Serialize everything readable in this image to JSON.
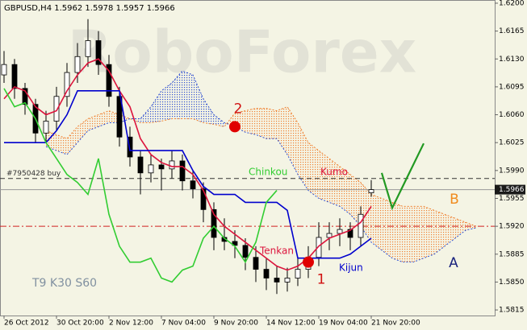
{
  "chart_data": {
    "type": "candlestick",
    "title": "GBPUSD,H4  1.5962 1.5978 1.5957 1.5966",
    "watermark": "RoboForex",
    "settings_text": "T9 K30 S60",
    "categories": [
      "26 Oct 2012",
      null,
      null,
      null,
      null,
      "30 Oct 20:00",
      null,
      null,
      null,
      null,
      "2 Nov 12:00",
      null,
      null,
      null,
      null,
      "7 Nov 04:00",
      null,
      null,
      null,
      null,
      "9 Nov 20:00",
      null,
      null,
      null,
      null,
      "14 Nov 12:00",
      null,
      null,
      null,
      null,
      "19 Nov 04:00",
      null,
      null,
      null,
      null,
      "21 Nov 20:00",
      null,
      null,
      null,
      null,
      null,
      null,
      null,
      null,
      null,
      null
    ],
    "candles": [
      [
        1.611,
        1.614,
        1.61,
        1.6123
      ],
      [
        1.6123,
        1.613,
        1.608,
        1.6093
      ],
      [
        1.6093,
        1.61,
        1.606,
        1.6073
      ],
      [
        1.6073,
        1.608,
        1.6025,
        1.6037
      ],
      [
        1.6037,
        1.6065,
        1.6025,
        1.6052
      ],
      [
        1.6052,
        1.6095,
        1.604,
        1.6083
      ],
      [
        1.6083,
        1.6125,
        1.607,
        1.6113
      ],
      [
        1.6113,
        1.615,
        1.61,
        1.6133
      ],
      [
        1.6133,
        1.618,
        1.612,
        1.6153
      ],
      [
        1.6153,
        1.6165,
        1.611,
        1.6123
      ],
      [
        1.6123,
        1.6135,
        1.607,
        1.6083
      ],
      [
        1.6083,
        1.6095,
        1.602,
        1.6032
      ],
      [
        1.6032,
        1.6045,
        1.5995,
        1.6007
      ],
      [
        1.6007,
        1.6015,
        1.596,
        1.5987
      ],
      [
        1.5987,
        1.601,
        1.5975,
        1.5997
      ],
      [
        1.5997,
        1.6005,
        1.5965,
        1.5992
      ],
      [
        1.5992,
        1.6015,
        1.598,
        1.6002
      ],
      [
        1.6002,
        1.601,
        1.5965,
        1.5977
      ],
      [
        1.5977,
        1.599,
        1.5955,
        1.5967
      ],
      [
        1.5967,
        1.5975,
        1.5925,
        1.5941
      ],
      [
        1.5941,
        1.595,
        1.589,
        1.5906
      ],
      [
        1.5906,
        1.593,
        1.589,
        1.5901
      ],
      [
        1.5901,
        1.5915,
        1.588,
        1.5896
      ],
      [
        1.5896,
        1.5905,
        1.5865,
        1.5881
      ],
      [
        1.5881,
        1.5895,
        1.585,
        1.5866
      ],
      [
        1.5866,
        1.588,
        1.584,
        1.5855
      ],
      [
        1.5855,
        1.587,
        1.5835,
        1.585
      ],
      [
        1.585,
        1.5868,
        1.5838,
        1.5855
      ],
      [
        1.5855,
        1.588,
        1.5845,
        1.5866
      ],
      [
        1.5866,
        1.5895,
        1.5855,
        1.5881
      ],
      [
        1.5881,
        1.5925,
        1.587,
        1.5906
      ],
      [
        1.5906,
        1.5925,
        1.589,
        1.5911
      ],
      [
        1.5911,
        1.593,
        1.5895,
        1.5916
      ],
      [
        1.5916,
        1.5925,
        1.589,
        1.5906
      ],
      [
        1.5906,
        1.5945,
        1.5895,
        1.5935
      ],
      [
        1.5962,
        1.5978,
        1.5957,
        1.5966
      ]
    ],
    "series": [
      {
        "name": "Tenkan",
        "color": "#dc143c",
        "values": [
          1.608,
          1.6095,
          1.609,
          1.607,
          1.606,
          1.6065,
          1.609,
          1.611,
          1.6125,
          1.613,
          1.6115,
          1.609,
          1.607,
          1.603,
          1.601,
          1.6,
          1.5995,
          1.5995,
          1.5985,
          1.5965,
          1.5935,
          1.592,
          1.591,
          1.59,
          1.589,
          1.588,
          1.587,
          1.5865,
          1.587,
          1.588,
          1.5895,
          1.5905,
          1.591,
          1.5915,
          1.5925,
          1.5945,
          null,
          null,
          null,
          null,
          null,
          null,
          null,
          null,
          null,
          null
        ]
      },
      {
        "name": "Kijun",
        "color": "#0000cd",
        "values": [
          1.6025,
          1.6025,
          1.6025,
          1.6025,
          1.6025,
          1.604,
          1.606,
          1.609,
          1.609,
          1.609,
          1.609,
          1.609,
          1.6015,
          1.6015,
          1.6015,
          1.6015,
          1.6015,
          1.6015,
          1.599,
          1.597,
          1.596,
          1.596,
          1.596,
          1.595,
          1.595,
          1.595,
          1.595,
          1.594,
          1.588,
          1.588,
          1.588,
          1.588,
          1.588,
          1.5885,
          1.5895,
          1.5905,
          null,
          null,
          null,
          null,
          null,
          null,
          null,
          null,
          null,
          null
        ]
      },
      {
        "name": "Chinkou",
        "color": "#32cd32",
        "values": [
          1.6093,
          1.607,
          1.6075,
          1.6055,
          1.6025,
          1.6005,
          1.5985,
          1.5975,
          1.596,
          1.6005,
          1.5935,
          1.5895,
          1.5875,
          1.5875,
          1.588,
          1.5855,
          1.585,
          1.5865,
          1.587,
          1.5905,
          1.592,
          1.5905,
          1.5895,
          1.5875,
          1.59,
          1.595,
          1.5965,
          null,
          null,
          null,
          null,
          null,
          null,
          null,
          null,
          null,
          null,
          null,
          null,
          null,
          null,
          null,
          null,
          null,
          null,
          null
        ]
      }
    ],
    "kumo": {
      "name": "Kumo",
      "color_up": "#f08030",
      "color_down": "#3050d0",
      "span_a": [
        null,
        null,
        null,
        null,
        1.604,
        1.6035,
        1.603,
        1.6045,
        1.6055,
        1.606,
        1.6065,
        1.606,
        1.6055,
        1.605,
        1.605,
        1.6052,
        1.6055,
        1.6055,
        1.6055,
        1.605,
        1.6048,
        1.6045,
        1.6062,
        1.6065,
        1.6068,
        1.6068,
        1.6065,
        1.607,
        1.605,
        1.6025,
        1.6015,
        1.6005,
        1.5995,
        1.5985,
        1.5975,
        1.596,
        1.5955,
        1.595,
        1.5945,
        1.5945,
        1.5945,
        1.594,
        1.5935,
        1.593,
        1.5925,
        1.592
      ],
      "span_b": [
        null,
        null,
        null,
        null,
        1.602,
        1.6015,
        1.601,
        1.6025,
        1.604,
        1.6045,
        1.605,
        1.605,
        1.6055,
        1.6055,
        1.607,
        1.609,
        1.61,
        1.6115,
        1.611,
        1.608,
        1.606,
        1.605,
        1.6045,
        1.6038,
        1.6035,
        1.603,
        1.603,
        1.601,
        1.5985,
        1.5965,
        1.5955,
        1.595,
        1.5945,
        1.5935,
        1.592,
        1.59,
        1.589,
        1.588,
        1.5875,
        1.5875,
        1.588,
        1.5885,
        1.5895,
        1.5905,
        1.5915,
        1.5918
      ]
    },
    "forecast": {
      "color": "#229922",
      "x": [
        36,
        37,
        40
      ],
      "values": [
        1.5987,
        1.5943,
        1.6024
      ]
    },
    "signals": [
      {
        "label": "2",
        "x": 22,
        "value": 1.6045
      },
      {
        "label": "1",
        "x": 29,
        "value": 1.5875
      }
    ],
    "wave_labels": [
      {
        "label": "A",
        "color": "#1a237e"
      },
      {
        "label": "B",
        "color": "#f08a1c"
      }
    ],
    "order": {
      "label": "#7950428 buy",
      "value": 1.598
    },
    "level": 1.592,
    "current_price": 1.5966,
    "ylim": [
      1.5808,
      1.6204
    ],
    "yticks": [
      {
        "value": 1.62,
        "label": "1.6200"
      },
      1.6165,
      {
        "value": 1.613,
        "label": "1.6130"
      },
      1.6095,
      {
        "value": 1.606,
        "label": "1.6060"
      },
      1.6025,
      {
        "value": 1.599,
        "label": "1.5990"
      },
      1.5955,
      {
        "value": 1.592,
        "label": "1.5920"
      },
      1.5885,
      {
        "value": 1.585,
        "label": "1.5850"
      },
      1.5815
    ]
  }
}
